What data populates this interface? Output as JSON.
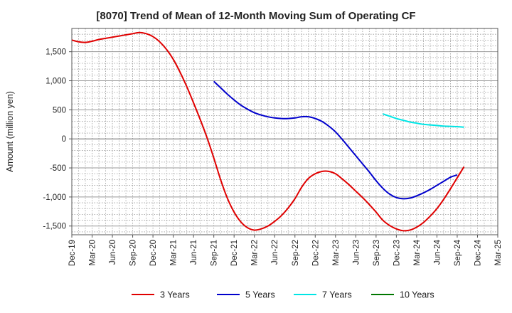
{
  "chart_data": {
    "type": "line",
    "title": "[8070]  Trend of Mean of 12-Month Moving Sum of Operating CF",
    "ylabel": "Amount (million yen)",
    "xlabel": "",
    "ylim": [
      -1650,
      1900
    ],
    "yticks": [
      -1500,
      -1000,
      -500,
      0,
      500,
      1000,
      1500
    ],
    "ytick_labels": [
      "-1,500",
      "-1,000",
      "-500",
      "0",
      "500",
      "1,000",
      "1,500"
    ],
    "x_start": "Dec-19",
    "x_months": 63,
    "xtick_labels": [
      "Dec-19",
      "Mar-20",
      "Jun-20",
      "Sep-20",
      "Dec-20",
      "Mar-21",
      "Jun-21",
      "Sep-21",
      "Dec-21",
      "Mar-22",
      "Jun-22",
      "Sep-22",
      "Dec-22",
      "Mar-23",
      "Jun-23",
      "Sep-23",
      "Dec-23",
      "Mar-24",
      "Jun-24",
      "Sep-24",
      "Dec-24",
      "Mar-25"
    ],
    "grid": true,
    "legend_position": "bottom",
    "series": [
      {
        "name": "3 Years",
        "color": "#e00000",
        "points": [
          [
            0,
            1700
          ],
          [
            1,
            1670
          ],
          [
            2,
            1660
          ],
          [
            3,
            1680
          ],
          [
            4,
            1710
          ],
          [
            5,
            1730
          ],
          [
            6,
            1750
          ],
          [
            7,
            1770
          ],
          [
            8,
            1790
          ],
          [
            9,
            1810
          ],
          [
            10,
            1830
          ],
          [
            11,
            1810
          ],
          [
            12,
            1760
          ],
          [
            13,
            1670
          ],
          [
            14,
            1540
          ],
          [
            15,
            1370
          ],
          [
            16,
            1150
          ],
          [
            17,
            900
          ],
          [
            18,
            620
          ],
          [
            19,
            330
          ],
          [
            20,
            20
          ],
          [
            21,
            -330
          ],
          [
            22,
            -700
          ],
          [
            23,
            -1020
          ],
          [
            24,
            -1260
          ],
          [
            25,
            -1430
          ],
          [
            26,
            -1530
          ],
          [
            27,
            -1570
          ],
          [
            28,
            -1550
          ],
          [
            29,
            -1500
          ],
          [
            30,
            -1420
          ],
          [
            31,
            -1320
          ],
          [
            32,
            -1190
          ],
          [
            33,
            -1030
          ],
          [
            34,
            -830
          ],
          [
            35,
            -680
          ],
          [
            36,
            -600
          ],
          [
            37,
            -560
          ],
          [
            38,
            -560
          ],
          [
            39,
            -600
          ],
          [
            40,
            -690
          ],
          [
            41,
            -790
          ],
          [
            42,
            -900
          ],
          [
            43,
            -1010
          ],
          [
            44,
            -1130
          ],
          [
            45,
            -1260
          ],
          [
            46,
            -1400
          ],
          [
            47,
            -1490
          ],
          [
            48,
            -1550
          ],
          [
            49,
            -1580
          ],
          [
            50,
            -1570
          ],
          [
            51,
            -1520
          ],
          [
            52,
            -1440
          ],
          [
            53,
            -1330
          ],
          [
            54,
            -1200
          ],
          [
            55,
            -1040
          ],
          [
            56,
            -860
          ],
          [
            57,
            -670
          ],
          [
            58,
            -480
          ]
        ]
      },
      {
        "name": "5 Years",
        "color": "#0000cc",
        "points": [
          [
            21,
            990
          ],
          [
            22,
            880
          ],
          [
            23,
            770
          ],
          [
            24,
            670
          ],
          [
            25,
            580
          ],
          [
            26,
            510
          ],
          [
            27,
            450
          ],
          [
            28,
            410
          ],
          [
            29,
            380
          ],
          [
            30,
            360
          ],
          [
            31,
            350
          ],
          [
            32,
            350
          ],
          [
            33,
            360
          ],
          [
            34,
            380
          ],
          [
            35,
            380
          ],
          [
            36,
            350
          ],
          [
            37,
            300
          ],
          [
            38,
            220
          ],
          [
            39,
            120
          ],
          [
            40,
            -10
          ],
          [
            41,
            -150
          ],
          [
            42,
            -290
          ],
          [
            43,
            -430
          ],
          [
            44,
            -570
          ],
          [
            45,
            -720
          ],
          [
            46,
            -850
          ],
          [
            47,
            -950
          ],
          [
            48,
            -1010
          ],
          [
            49,
            -1030
          ],
          [
            50,
            -1020
          ],
          [
            51,
            -980
          ],
          [
            52,
            -930
          ],
          [
            53,
            -870
          ],
          [
            54,
            -800
          ],
          [
            55,
            -730
          ],
          [
            56,
            -660
          ],
          [
            57,
            -620
          ]
        ]
      },
      {
        "name": "7 Years",
        "color": "#00e5e5",
        "points": [
          [
            46,
            430
          ],
          [
            47,
            390
          ],
          [
            48,
            350
          ],
          [
            49,
            320
          ],
          [
            50,
            290
          ],
          [
            51,
            270
          ],
          [
            52,
            250
          ],
          [
            53,
            240
          ],
          [
            54,
            230
          ],
          [
            55,
            220
          ],
          [
            56,
            215
          ],
          [
            57,
            210
          ],
          [
            58,
            200
          ]
        ]
      },
      {
        "name": "10 Years",
        "color": "#007700",
        "points": []
      }
    ]
  }
}
